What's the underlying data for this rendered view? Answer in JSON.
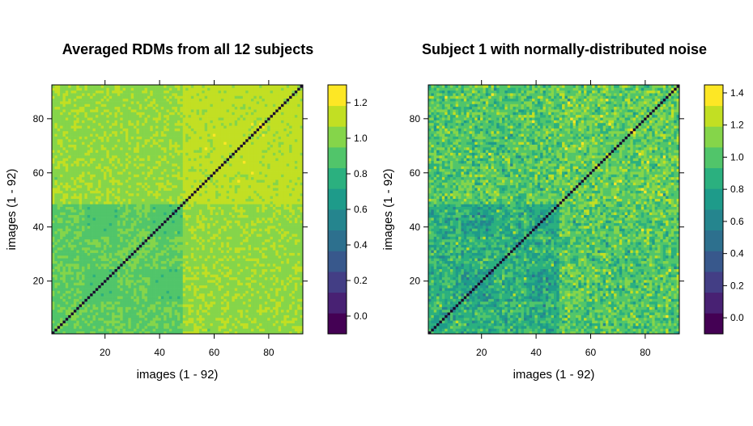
{
  "chart_data": [
    {
      "type": "heatmap",
      "title": "Averaged RDMs from all 12 subjects",
      "xlabel": "images (1 - 92)",
      "ylabel": "images (1 - 92)",
      "n": 92,
      "xlim": [
        1,
        92
      ],
      "ylim": [
        1,
        92
      ],
      "xticks": [
        20,
        40,
        60,
        80
      ],
      "yticks": [
        20,
        40,
        60,
        80
      ],
      "colorbar": {
        "min": -0.1,
        "max": 1.3,
        "ticks": [
          "0.0",
          "0.2",
          "0.4",
          "0.6",
          "0.8",
          "1.0",
          "1.2"
        ],
        "tick_values": [
          0.0,
          0.2,
          0.4,
          0.6,
          0.8,
          1.0,
          1.2
        ]
      },
      "structure": {
        "diagonal": 0.0,
        "split_index": 48,
        "animate_block": 1.05,
        "inanimate_block": 1.1,
        "cross_block": 0.92,
        "sub_blocks": [
          {
            "range": [
              12,
              24
            ],
            "value": 0.88
          },
          {
            "range": [
              36,
              48
            ],
            "value": 0.88
          }
        ],
        "noise_sd": 0.03
      }
    },
    {
      "type": "heatmap",
      "title": "Subject 1 with normally-distributed noise",
      "xlabel": "images (1 - 92)",
      "ylabel": "images (1 - 92)",
      "n": 92,
      "xlim": [
        1,
        92
      ],
      "ylim": [
        1,
        92
      ],
      "xticks": [
        20,
        40,
        60,
        80
      ],
      "yticks": [
        20,
        40,
        60,
        80
      ],
      "colorbar": {
        "min": -0.1,
        "max": 1.45,
        "ticks": [
          "0.0",
          "0.2",
          "0.4",
          "0.6",
          "0.8",
          "1.0",
          "1.2",
          "1.4"
        ],
        "tick_values": [
          0.0,
          0.2,
          0.4,
          0.6,
          0.8,
          1.0,
          1.2,
          1.4
        ]
      },
      "structure": {
        "diagonal": 0.0,
        "split_index": 48,
        "animate_block": 1.0,
        "inanimate_block": 1.05,
        "cross_block": 0.85,
        "sub_blocks": [
          {
            "range": [
              12,
              24
            ],
            "value": 0.78
          },
          {
            "range": [
              36,
              48
            ],
            "value": 0.8
          }
        ],
        "noise_sd": 0.12
      }
    }
  ],
  "colors": {
    "palette": [
      "#440154",
      "#482173",
      "#433E85",
      "#38588C",
      "#2D708E",
      "#25858E",
      "#1E9B8A",
      "#2BB07F",
      "#51C56A",
      "#85D54A",
      "#C2DF23",
      "#FDE725"
    ],
    "diagonal": "#1a0a2e"
  }
}
